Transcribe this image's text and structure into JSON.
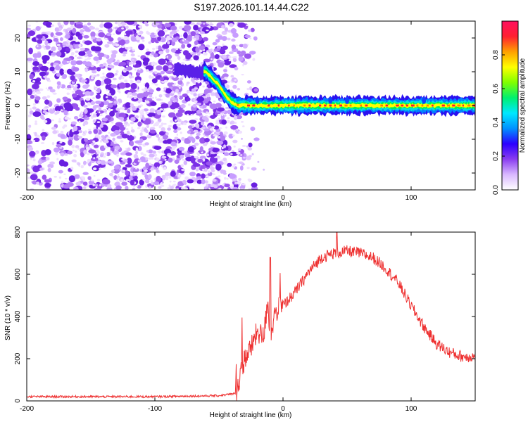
{
  "title": "S197.2026.101.14.44.C22",
  "chart_data": [
    {
      "type": "heatmap",
      "name": "spectrogram",
      "xlabel": "Height of straight line (km)",
      "ylabel": "Frequency (Hz)",
      "xlim": [
        -200,
        150
      ],
      "ylim": [
        -25,
        25
      ],
      "xticks": [
        -200,
        -100,
        0,
        100
      ],
      "yticks": [
        -20,
        -10,
        0,
        10,
        20
      ],
      "colorbar": {
        "label": "Normalized spectral amplitude",
        "range": [
          0,
          1
        ],
        "ticks": [
          "0.0",
          "0.2",
          "0.4",
          "0.6",
          "0.8"
        ],
        "tick_values": [
          0.0,
          0.2,
          0.4,
          0.6,
          0.8
        ],
        "colors": [
          "#ffffff",
          "#d9b8ff",
          "#8a3df0",
          "#2c00ff",
          "#0090ff",
          "#00e8ff",
          "#00f070",
          "#80ff00",
          "#ffff00",
          "#ffa000",
          "#ff2030",
          "#ff1060"
        ]
      },
      "trace": {
        "x": [
          -85,
          -70,
          -60,
          -55,
          -50,
          -45,
          -40,
          -35,
          -30,
          -20,
          -10,
          0,
          40,
          100,
          150
        ],
        "freq": [
          11,
          10,
          10,
          8,
          6,
          3,
          1,
          0,
          0,
          0,
          0,
          0,
          0,
          0,
          0
        ],
        "noise_region_x": [
          -200,
          -45
        ]
      }
    },
    {
      "type": "line",
      "name": "snr",
      "xlabel": "Height of straight line (km)",
      "ylabel": "SNR (10 * v/v)",
      "xlim": [
        -200,
        150
      ],
      "ylim": [
        0,
        800
      ],
      "xticks": [
        -200,
        -100,
        0,
        100
      ],
      "yticks": [
        0,
        200,
        400,
        600,
        800
      ],
      "color": "#ee3030",
      "series": [
        {
          "name": "SNR",
          "x": [
            -200,
            -150,
            -100,
            -50,
            -37,
            -35,
            -30,
            -25,
            -20,
            -15,
            -12,
            -10,
            -7,
            -5,
            0,
            10,
            20,
            30,
            40,
            50,
            60,
            70,
            80,
            90,
            100,
            110,
            120,
            130,
            140,
            150
          ],
          "values": [
            20,
            20,
            20,
            25,
            35,
            80,
            200,
            250,
            330,
            300,
            480,
            300,
            400,
            430,
            450,
            520,
            610,
            680,
            700,
            710,
            700,
            680,
            630,
            560,
            450,
            350,
            270,
            230,
            210,
            210
          ]
        }
      ],
      "peaks": [
        {
          "x": -10,
          "y": 680
        },
        {
          "x": 42,
          "y": 800
        }
      ]
    }
  ]
}
